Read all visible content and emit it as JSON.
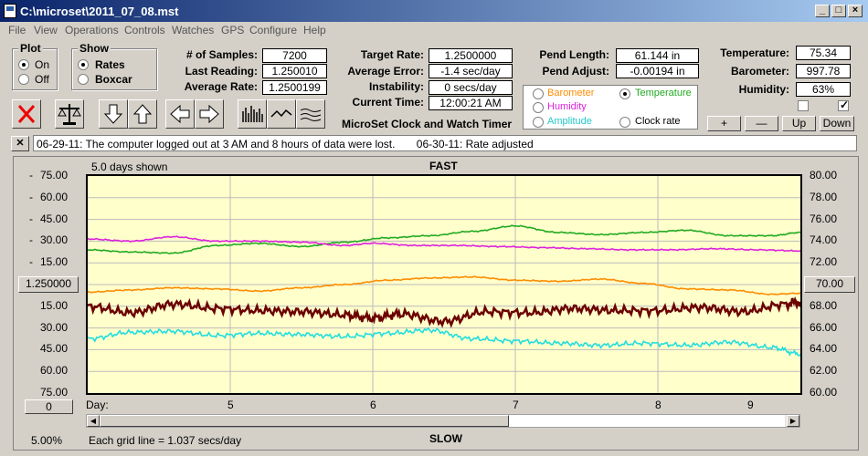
{
  "window": {
    "title": "C:\\microset\\2011_07_08.mst"
  },
  "menu": [
    "File",
    "View",
    "Operations",
    "Controls",
    "Watches",
    "GPS",
    "Configure",
    "Help"
  ],
  "plot_group": {
    "label": "Plot",
    "on": "On",
    "off": "Off"
  },
  "show_group": {
    "label": "Show",
    "rates": "Rates",
    "boxcar": "Boxcar"
  },
  "stats": {
    "samples_label": "# of Samples:",
    "samples": "7200",
    "last_label": "Last Reading:",
    "last": "1.250010",
    "avg_label": "Average Rate:",
    "avg": "1.2500199"
  },
  "targets": {
    "target_label": "Target Rate:",
    "target": "1.2500000",
    "error_label": "Average Error:",
    "error": "-1.4 sec/day",
    "instab_label": "Instability:",
    "instab": "0 secs/day",
    "time_label": "Current Time:",
    "time": "12:00:21 AM"
  },
  "pend": {
    "length_label": "Pend Length:",
    "length": "61.144 in",
    "adjust_label": "Pend Adjust:",
    "adjust": "-0.00194 in"
  },
  "env": {
    "temp_label": "Temperature:",
    "temp": "75.34",
    "baro_label": "Barometer:",
    "baro": "997.78",
    "hum_label": "Humidity:",
    "hum": "63%"
  },
  "traces": {
    "barometer": "Barometer",
    "temperature": "Temperature",
    "humidity": "Humidity",
    "amplitude": "Amplitude",
    "clockrate": "Clock rate"
  },
  "app_label": "MicroSet Clock and Watch Timer",
  "scale_buttons": {
    "plus": "+",
    "minus": "—",
    "up": "Up",
    "down": "Down"
  },
  "notes": "06-29-11: The computer logged out at 3 AM and 8 hours of data were lost.       06-30-11: Rate adjusted",
  "notes_close": "✕",
  "chart": {
    "days_shown": "5.0 days shown",
    "top": "FAST",
    "bottom": "SLOW",
    "day_label": "Day:",
    "center_left": "1.250000",
    "center_right": "70.00",
    "left_zero": "0",
    "grid_note": "Each grid line = 1.037 secs/day",
    "zoom": "5.00%"
  },
  "colors": {
    "barometer": "#ff8c00",
    "temperature": "#22aa22",
    "humidity": "#dd22dd",
    "amplitude": "#22dddd",
    "clockrate": "#6b0000"
  },
  "chart_data": {
    "type": "line",
    "x_ticks": [
      "5",
      "6",
      "7",
      "8",
      "9"
    ],
    "y_left_ticks": [
      "75.00",
      "60.00",
      "45.00",
      "30.00",
      "15.00",
      "1.250000",
      "15.00",
      "30.00",
      "45.00",
      "60.00",
      "75.00"
    ],
    "y_left_signs": [
      "-",
      "-",
      "-",
      "-",
      "-",
      "",
      "",
      "",
      "",
      "",
      ""
    ],
    "y_right_ticks": [
      "80.00",
      "78.00",
      "76.00",
      "74.00",
      "72.00",
      "70.00",
      "68.00",
      "66.00",
      "64.00",
      "62.00",
      "60.00"
    ],
    "xlim": [
      4.0,
      9.0
    ],
    "series": [
      {
        "name": "Temperature",
        "color": "#22aa22",
        "x": [
          4,
          4.3,
          4.6,
          4.9,
          5.2,
          5.5,
          5.8,
          6.1,
          6.4,
          6.7,
          7.0,
          7.3,
          7.6,
          7.9,
          8.2,
          8.5,
          8.8,
          9.0
        ],
        "y": [
          73.2,
          73.0,
          72.9,
          73.6,
          73.8,
          73.5,
          73.9,
          74.3,
          74.5,
          74.9,
          75.4,
          74.8,
          74.6,
          74.8,
          75.0,
          74.5,
          74.5,
          74.8
        ]
      },
      {
        "name": "Humidity",
        "color": "#dd22dd",
        "x": [
          4,
          4.3,
          4.6,
          4.9,
          5.2,
          5.5,
          5.8,
          6.0,
          6.3,
          6.6,
          6.9,
          7.2,
          7.5,
          7.8,
          8.1,
          8.4,
          8.7,
          9.0
        ],
        "y": [
          74.2,
          74.0,
          74.4,
          74.0,
          74.0,
          73.9,
          73.6,
          73.8,
          73.6,
          73.6,
          73.5,
          73.4,
          73.3,
          73.2,
          73.2,
          73.3,
          73.2,
          73.1
        ]
      },
      {
        "name": "Barometer",
        "color": "#ff8c00",
        "x": [
          4,
          4.3,
          4.6,
          4.9,
          5.2,
          5.5,
          5.8,
          6.1,
          6.4,
          6.7,
          7.0,
          7.3,
          7.6,
          7.9,
          8.2,
          8.5,
          8.8,
          9.0
        ],
        "y": [
          69.3,
          69.5,
          69.7,
          69.6,
          69.4,
          69.7,
          70.0,
          70.4,
          70.6,
          70.7,
          70.4,
          70.3,
          70.5,
          70.1,
          69.6,
          69.5,
          69.1,
          69.2
        ]
      },
      {
        "name": "Clock rate",
        "color": "#6b0000",
        "x": [
          4,
          4.3,
          4.6,
          4.9,
          5.2,
          5.5,
          5.8,
          6.0,
          6.2,
          6.5,
          6.8,
          7.1,
          7.4,
          7.7,
          8.0,
          8.3,
          8.6,
          8.9,
          9.0
        ],
        "y": [
          68.0,
          67.4,
          68.2,
          67.8,
          67.6,
          67.5,
          67.2,
          66.9,
          67.3,
          66.6,
          67.5,
          67.4,
          67.8,
          67.6,
          67.6,
          67.9,
          67.5,
          68.2,
          68.4
        ]
      },
      {
        "name": "Amplitude",
        "color": "#22dddd",
        "x": [
          4,
          4.3,
          4.6,
          4.9,
          5.2,
          5.5,
          5.8,
          6.1,
          6.4,
          6.7,
          7.0,
          7.3,
          7.6,
          7.9,
          8.2,
          8.5,
          8.8,
          9.0
        ],
        "y": [
          65.0,
          65.6,
          65.7,
          65.3,
          65.5,
          65.4,
          65.2,
          65.5,
          65.8,
          65.0,
          64.8,
          64.6,
          64.4,
          64.6,
          64.4,
          64.7,
          64.2,
          63.6
        ]
      }
    ]
  }
}
